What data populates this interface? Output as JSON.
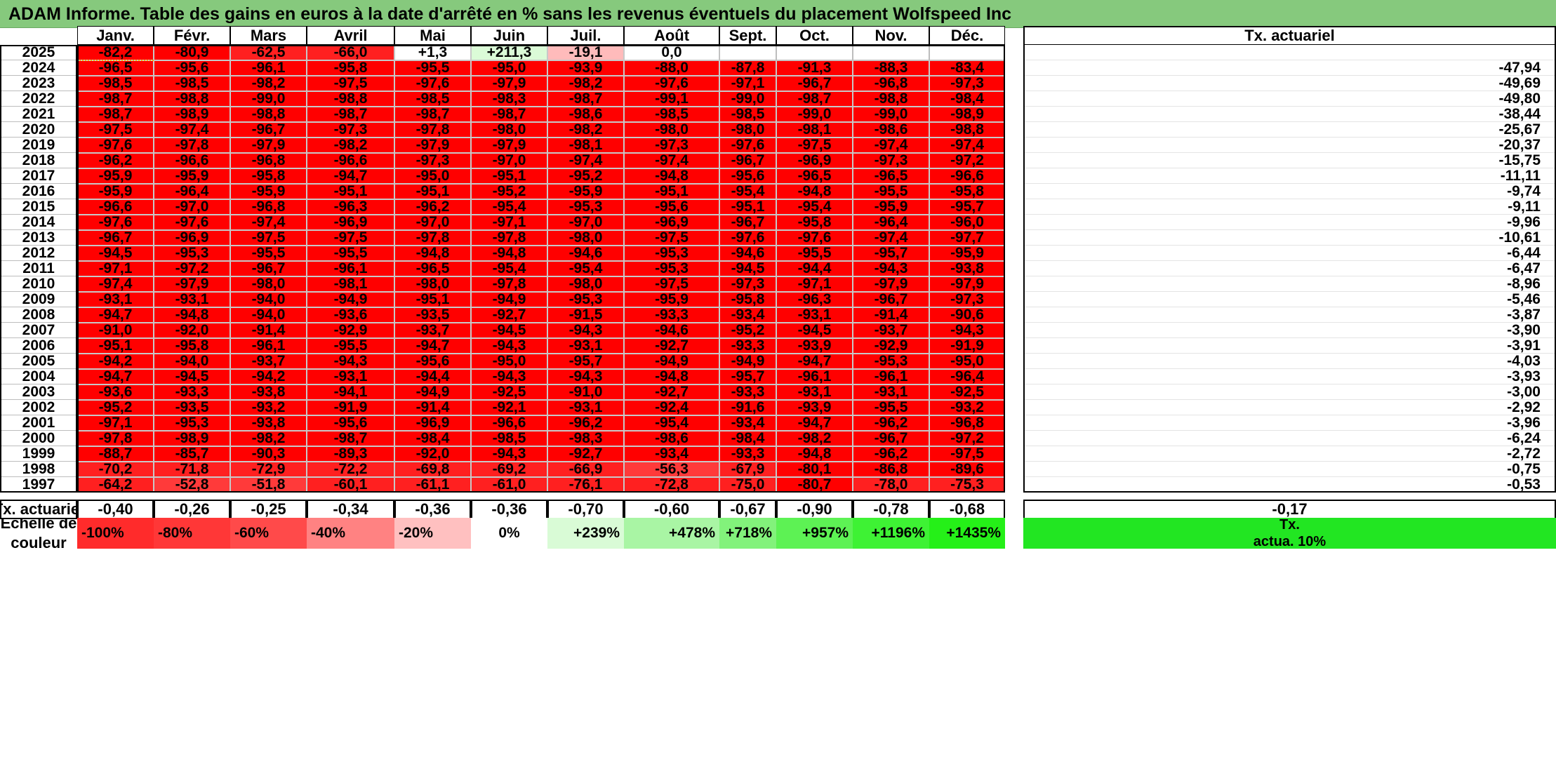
{
  "title": "ADAM Informe. Table des gains en euros à la date d'arrêté en % sans les revenus éventuels du placement Wolfspeed Inc",
  "table": {
    "months": [
      "Janv.",
      "Févr.",
      "Mars",
      "Avril",
      "Mai",
      "Juin",
      "Juil.",
      "Août",
      "Sept.",
      "Oct.",
      "Nov.",
      "Déc."
    ],
    "rate_header": "Tx. actuariel",
    "rows": [
      {
        "year": "2025",
        "values": [
          "-82,2",
          "-80,9",
          "-62,5",
          "-66,0",
          "+1,3",
          "+211,3",
          "-19,1",
          "0,0",
          "",
          "",
          "",
          ""
        ],
        "rate": ""
      },
      {
        "year": "2024",
        "values": [
          "-96,5",
          "-95,6",
          "-96,1",
          "-95,8",
          "-95,5",
          "-95,0",
          "-93,9",
          "-88,0",
          "-87,8",
          "-91,3",
          "-88,3",
          "-83,4"
        ],
        "rate": "-47,94"
      },
      {
        "year": "2023",
        "values": [
          "-98,5",
          "-98,5",
          "-98,2",
          "-97,5",
          "-97,6",
          "-97,9",
          "-98,2",
          "-97,6",
          "-97,1",
          "-96,7",
          "-96,8",
          "-97,3"
        ],
        "rate": "-49,69"
      },
      {
        "year": "2022",
        "values": [
          "-98,7",
          "-98,8",
          "-99,0",
          "-98,8",
          "-98,5",
          "-98,3",
          "-98,7",
          "-99,1",
          "-99,0",
          "-98,7",
          "-98,8",
          "-98,4"
        ],
        "rate": "-49,80"
      },
      {
        "year": "2021",
        "values": [
          "-98,7",
          "-98,9",
          "-98,8",
          "-98,7",
          "-98,7",
          "-98,7",
          "-98,6",
          "-98,5",
          "-98,5",
          "-99,0",
          "-99,0",
          "-98,9"
        ],
        "rate": "-38,44"
      },
      {
        "year": "2020",
        "values": [
          "-97,5",
          "-97,4",
          "-96,7",
          "-97,3",
          "-97,8",
          "-98,0",
          "-98,2",
          "-98,0",
          "-98,0",
          "-98,1",
          "-98,6",
          "-98,8"
        ],
        "rate": "-25,67"
      },
      {
        "year": "2019",
        "values": [
          "-97,6",
          "-97,8",
          "-97,9",
          "-98,2",
          "-97,9",
          "-97,9",
          "-98,1",
          "-97,3",
          "-97,6",
          "-97,5",
          "-97,4",
          "-97,4"
        ],
        "rate": "-20,37"
      },
      {
        "year": "2018",
        "values": [
          "-96,2",
          "-96,6",
          "-96,8",
          "-96,6",
          "-97,3",
          "-97,0",
          "-97,4",
          "-97,4",
          "-96,7",
          "-96,9",
          "-97,3",
          "-97,2"
        ],
        "rate": "-15,75"
      },
      {
        "year": "2017",
        "values": [
          "-95,9",
          "-95,9",
          "-95,8",
          "-94,7",
          "-95,0",
          "-95,1",
          "-95,2",
          "-94,8",
          "-95,6",
          "-96,5",
          "-96,5",
          "-96,6"
        ],
        "rate": "-11,11"
      },
      {
        "year": "2016",
        "values": [
          "-95,9",
          "-96,4",
          "-95,9",
          "-95,1",
          "-95,1",
          "-95,2",
          "-95,9",
          "-95,1",
          "-95,4",
          "-94,8",
          "-95,5",
          "-95,8"
        ],
        "rate": "-9,74"
      },
      {
        "year": "2015",
        "values": [
          "-96,6",
          "-97,0",
          "-96,8",
          "-96,3",
          "-96,2",
          "-95,4",
          "-95,3",
          "-95,6",
          "-95,1",
          "-95,4",
          "-95,9",
          "-95,7"
        ],
        "rate": "-9,11"
      },
      {
        "year": "2014",
        "values": [
          "-97,6",
          "-97,6",
          "-97,4",
          "-96,9",
          "-97,0",
          "-97,1",
          "-97,0",
          "-96,9",
          "-96,7",
          "-95,8",
          "-96,4",
          "-96,0"
        ],
        "rate": "-9,96"
      },
      {
        "year": "2013",
        "values": [
          "-96,7",
          "-96,9",
          "-97,5",
          "-97,5",
          "-97,8",
          "-97,8",
          "-98,0",
          "-97,5",
          "-97,6",
          "-97,6",
          "-97,4",
          "-97,7"
        ],
        "rate": "-10,61"
      },
      {
        "year": "2012",
        "values": [
          "-94,5",
          "-95,3",
          "-95,5",
          "-95,5",
          "-94,8",
          "-94,8",
          "-94,6",
          "-95,3",
          "-94,6",
          "-95,5",
          "-95,7",
          "-95,9"
        ],
        "rate": "-6,44"
      },
      {
        "year": "2011",
        "values": [
          "-97,1",
          "-97,2",
          "-96,7",
          "-96,1",
          "-96,5",
          "-95,4",
          "-95,4",
          "-95,3",
          "-94,5",
          "-94,4",
          "-94,3",
          "-93,8"
        ],
        "rate": "-6,47"
      },
      {
        "year": "2010",
        "values": [
          "-97,4",
          "-97,9",
          "-98,0",
          "-98,1",
          "-98,0",
          "-97,8",
          "-98,0",
          "-97,5",
          "-97,3",
          "-97,1",
          "-97,9",
          "-97,9"
        ],
        "rate": "-8,96"
      },
      {
        "year": "2009",
        "values": [
          "-93,1",
          "-93,1",
          "-94,0",
          "-94,9",
          "-95,1",
          "-94,9",
          "-95,3",
          "-95,9",
          "-95,8",
          "-96,3",
          "-96,7",
          "-97,3"
        ],
        "rate": "-5,46"
      },
      {
        "year": "2008",
        "values": [
          "-94,7",
          "-94,8",
          "-94,0",
          "-93,6",
          "-93,5",
          "-92,7",
          "-91,5",
          "-93,3",
          "-93,4",
          "-93,1",
          "-91,4",
          "-90,6"
        ],
        "rate": "-3,87"
      },
      {
        "year": "2007",
        "values": [
          "-91,0",
          "-92,0",
          "-91,4",
          "-92,9",
          "-93,7",
          "-94,5",
          "-94,3",
          "-94,6",
          "-95,2",
          "-94,5",
          "-93,7",
          "-94,3"
        ],
        "rate": "-3,90"
      },
      {
        "year": "2006",
        "values": [
          "-95,1",
          "-95,8",
          "-96,1",
          "-95,5",
          "-94,7",
          "-94,3",
          "-93,1",
          "-92,7",
          "-93,3",
          "-93,9",
          "-92,9",
          "-91,9"
        ],
        "rate": "-3,91"
      },
      {
        "year": "2005",
        "values": [
          "-94,2",
          "-94,0",
          "-93,7",
          "-94,3",
          "-95,6",
          "-95,0",
          "-95,7",
          "-94,9",
          "-94,9",
          "-94,7",
          "-95,3",
          "-95,0"
        ],
        "rate": "-4,03"
      },
      {
        "year": "2004",
        "values": [
          "-94,7",
          "-94,5",
          "-94,2",
          "-93,1",
          "-94,4",
          "-94,3",
          "-94,3",
          "-94,8",
          "-95,7",
          "-96,1",
          "-96,1",
          "-96,4"
        ],
        "rate": "-3,93"
      },
      {
        "year": "2003",
        "values": [
          "-93,6",
          "-93,3",
          "-93,8",
          "-94,1",
          "-94,9",
          "-92,5",
          "-91,0",
          "-92,7",
          "-93,3",
          "-93,1",
          "-93,1",
          "-92,5"
        ],
        "rate": "-3,00"
      },
      {
        "year": "2002",
        "values": [
          "-95,2",
          "-93,5",
          "-93,2",
          "-91,9",
          "-91,4",
          "-92,1",
          "-93,1",
          "-92,4",
          "-91,6",
          "-93,9",
          "-95,5",
          "-93,2"
        ],
        "rate": "-2,92"
      },
      {
        "year": "2001",
        "values": [
          "-97,1",
          "-95,3",
          "-93,8",
          "-95,6",
          "-96,9",
          "-96,6",
          "-96,2",
          "-95,4",
          "-93,4",
          "-94,7",
          "-96,2",
          "-96,8"
        ],
        "rate": "-3,96"
      },
      {
        "year": "2000",
        "values": [
          "-97,8",
          "-98,9",
          "-98,2",
          "-98,7",
          "-98,4",
          "-98,5",
          "-98,3",
          "-98,6",
          "-98,4",
          "-98,2",
          "-96,7",
          "-97,2"
        ],
        "rate": "-6,24"
      },
      {
        "year": "1999",
        "values": [
          "-88,7",
          "-85,7",
          "-90,3",
          "-89,3",
          "-92,0",
          "-94,3",
          "-92,7",
          "-93,4",
          "-93,3",
          "-94,8",
          "-96,2",
          "-97,5"
        ],
        "rate": "-2,72"
      },
      {
        "year": "1998",
        "values": [
          "-70,2",
          "-71,8",
          "-72,9",
          "-72,2",
          "-69,8",
          "-69,2",
          "-66,9",
          "-56,3",
          "-67,9",
          "-80,1",
          "-86,8",
          "-89,6"
        ],
        "rate": "-0,75"
      },
      {
        "year": "1997",
        "values": [
          "-64,2",
          "-52,8",
          "-51,8",
          "-60,1",
          "-61,1",
          "-61,0",
          "-76,1",
          "-72,8",
          "-75,0",
          "-80,7",
          "-78,0",
          "-75,3"
        ],
        "rate": "-0,53"
      }
    ],
    "footer": {
      "label": "Tx. actuariel",
      "values": [
        "-0,40",
        "-0,26",
        "-0,25",
        "-0,34",
        "-0,36",
        "-0,36",
        "-0,70",
        "-0,60",
        "-0,67",
        "-0,90",
        "-0,78",
        "-0,68"
      ],
      "total": "-0,17"
    }
  },
  "legend": {
    "label_line1": "Echelle de",
    "label_line2": "couleur",
    "scale": [
      {
        "text": "-100%",
        "color": "#ff2b2b"
      },
      {
        "text": "-80%",
        "color": "#ff3737"
      },
      {
        "text": "-60%",
        "color": "#ff4a4a"
      },
      {
        "text": "-40%",
        "color": "#ff8282"
      },
      {
        "text": "-20%",
        "color": "#ffc0c0"
      },
      {
        "text": "0%",
        "color": "#ffffff"
      },
      {
        "text": "+239%",
        "color": "#d9fbd6"
      },
      {
        "text": "+478%",
        "color": "#a9f5a4"
      },
      {
        "text": "+718%",
        "color": "#82f27b"
      },
      {
        "text": "+957%",
        "color": "#5df254"
      },
      {
        "text": "+1196%",
        "color": "#3ef234"
      },
      {
        "text": "+1435%",
        "color": "#25f018"
      }
    ],
    "end_line1": "Tx.",
    "end_line2": "actua. 10%",
    "end_color": "#22e622"
  },
  "colors": {
    "negative": "#ff0000",
    "title_bg": "#86c97d"
  }
}
